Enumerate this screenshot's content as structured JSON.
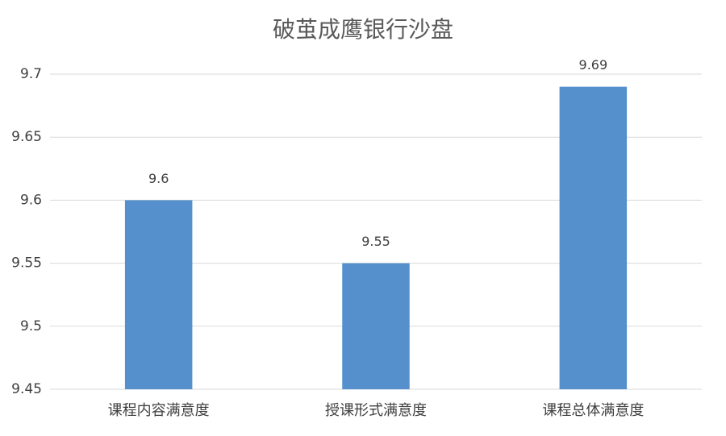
{
  "chart_data": {
    "type": "bar",
    "title": "破茧成鹰银行沙盘",
    "categories": [
      "课程内容满意度",
      "授课形式满意度",
      "课程总体满意度"
    ],
    "values": [
      9.6,
      9.55,
      9.69
    ],
    "color": "#5590cc",
    "ylim": [
      9.45,
      9.7
    ],
    "yticks": [
      9.45,
      9.5,
      9.55,
      9.6,
      9.65,
      9.7
    ],
    "grid": true
  }
}
